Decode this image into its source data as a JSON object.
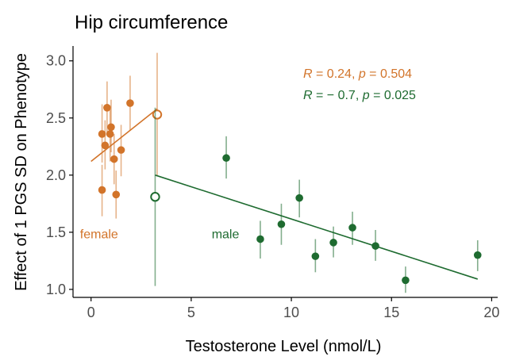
{
  "chart_data": {
    "type": "scatter",
    "title": "Hip circumference",
    "xlabel": "Testosterone Level (nmol/L)",
    "ylabel": "Effect of 1 PGS SD on Phenotype",
    "xlim": [
      -0.9,
      20.3
    ],
    "ylim": [
      0.93,
      3.13
    ],
    "xticks": [
      0,
      5,
      10,
      15,
      20
    ],
    "yticks": [
      1.0,
      1.5,
      2.0,
      2.5,
      3.0
    ],
    "yticklabels": [
      "1.0",
      "1.5",
      "2.0",
      "2.5",
      "3.0"
    ],
    "grid": false,
    "legend": "none",
    "series": [
      {
        "name": "female",
        "color": "#D2742A",
        "stat": {
          "R": "0.24",
          "p": "0.504"
        },
        "points": [
          {
            "x": 0.55,
            "y": 1.87,
            "ylo": 1.64,
            "yhi": 2.09
          },
          {
            "x": 0.55,
            "y": 2.36,
            "ylo": 2.11,
            "yhi": 2.62
          },
          {
            "x": 0.7,
            "y": 2.26,
            "ylo": 2.05,
            "yhi": 2.48
          },
          {
            "x": 0.8,
            "y": 2.59,
            "ylo": 2.36,
            "yhi": 2.82
          },
          {
            "x": 0.95,
            "y": 2.36,
            "ylo": 2.12,
            "yhi": 2.6
          },
          {
            "x": 1.0,
            "y": 2.42,
            "ylo": 2.2,
            "yhi": 2.66
          },
          {
            "x": 1.15,
            "y": 2.14,
            "ylo": 1.92,
            "yhi": 2.36
          },
          {
            "x": 1.25,
            "y": 1.83,
            "ylo": 1.62,
            "yhi": 2.04
          },
          {
            "x": 1.5,
            "y": 2.22,
            "ylo": 1.99,
            "yhi": 2.44
          },
          {
            "x": 1.95,
            "y": 2.63,
            "ylo": 2.39,
            "yhi": 2.87
          }
        ],
        "mean_point": {
          "x": 3.3,
          "y": 2.53,
          "ylo": 1.99,
          "yhi": 3.07
        },
        "fit": {
          "x": [
            0.0,
            3.3
          ],
          "y": [
            2.12,
            2.58
          ]
        },
        "label": "female"
      },
      {
        "name": "male",
        "color": "#1E6B30",
        "stat": {
          "R": "− 0.7",
          "p": "0.025"
        },
        "points": [
          {
            "x": 6.75,
            "y": 2.15,
            "ylo": 1.97,
            "yhi": 2.34
          },
          {
            "x": 8.45,
            "y": 1.44,
            "ylo": 1.27,
            "yhi": 1.6
          },
          {
            "x": 9.5,
            "y": 1.57,
            "ylo": 1.39,
            "yhi": 1.75
          },
          {
            "x": 10.4,
            "y": 1.8,
            "ylo": 1.63,
            "yhi": 1.96
          },
          {
            "x": 11.2,
            "y": 1.29,
            "ylo": 1.15,
            "yhi": 1.44
          },
          {
            "x": 12.1,
            "y": 1.41,
            "ylo": 1.28,
            "yhi": 1.55
          },
          {
            "x": 13.05,
            "y": 1.54,
            "ylo": 1.39,
            "yhi": 1.68
          },
          {
            "x": 14.2,
            "y": 1.38,
            "ylo": 1.25,
            "yhi": 1.52
          },
          {
            "x": 15.7,
            "y": 1.08,
            "ylo": 0.97,
            "yhi": 1.2
          },
          {
            "x": 19.3,
            "y": 1.3,
            "ylo": 1.16,
            "yhi": 1.43
          }
        ],
        "mean_point": {
          "x": 3.2,
          "y": 1.81,
          "ylo": 1.03,
          "yhi": 2.59
        },
        "fit": {
          "x": [
            3.2,
            19.3
          ],
          "y": [
            2.0,
            1.09
          ]
        },
        "label": "male"
      }
    ],
    "annotations": {
      "female_label_at": {
        "x": 0.4,
        "y": 1.49
      },
      "male_label_at": {
        "x": 6.3,
        "y": 1.49
      }
    }
  }
}
